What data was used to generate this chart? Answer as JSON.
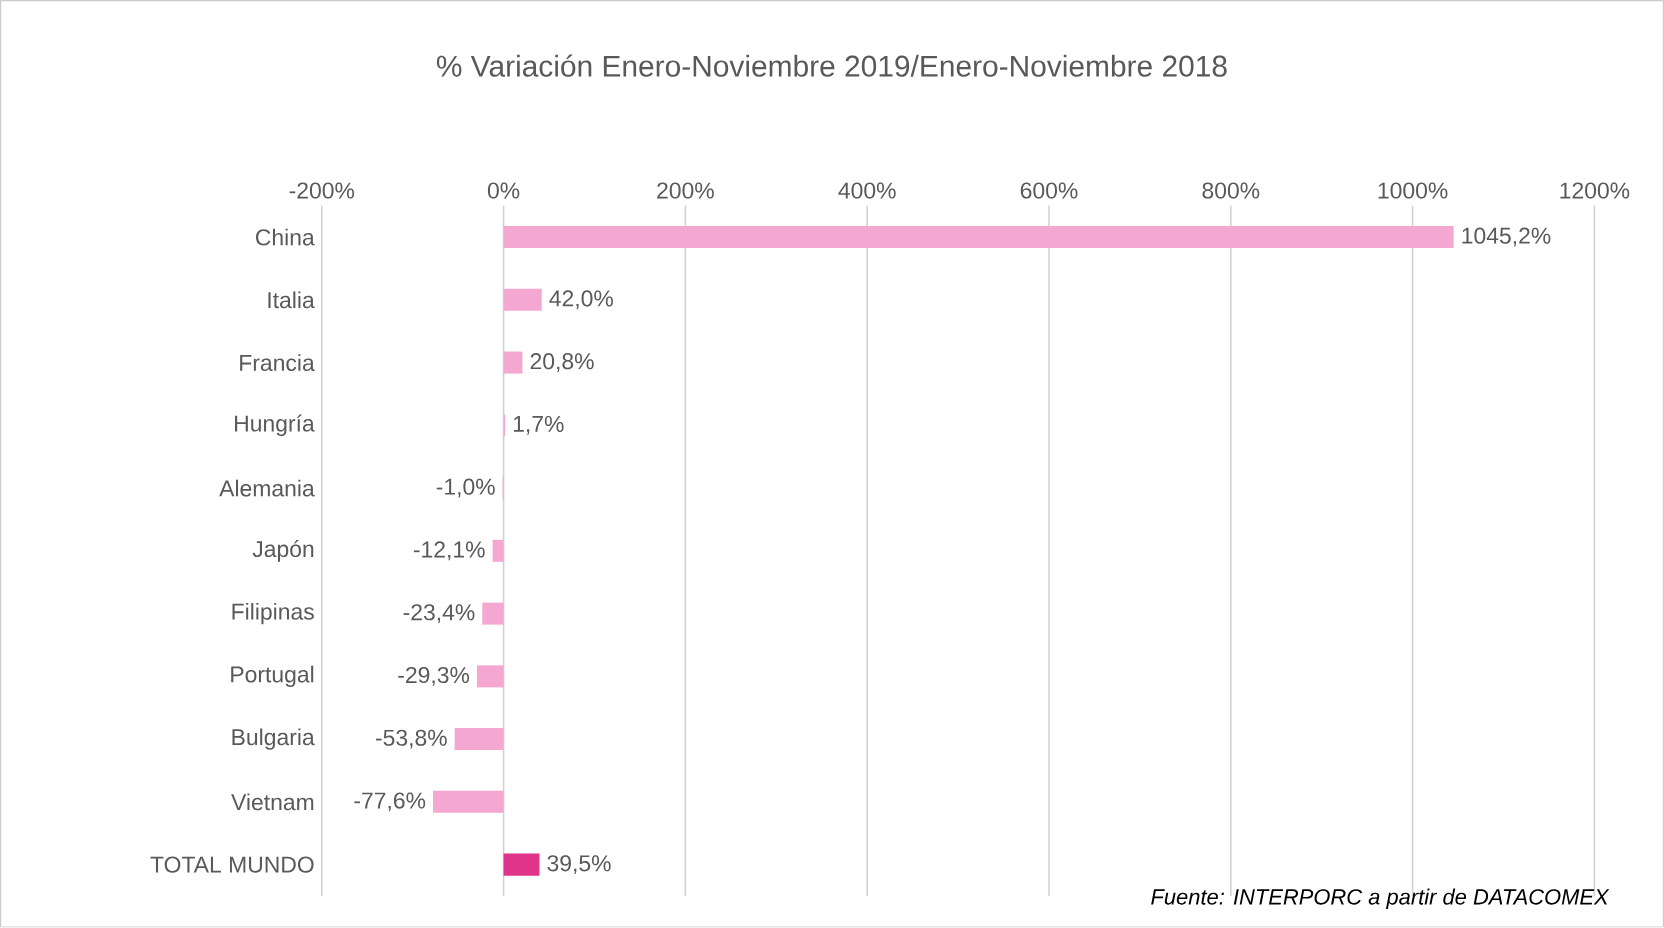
{
  "chart_data": {
    "type": "bar",
    "orientation": "horizontal",
    "title": "% Variación Enero-Noviembre 2019/Enero-Noviembre 2018",
    "categories": [
      "China",
      "Italia",
      "Francia",
      "Hungría",
      "Alemania",
      "Japón",
      "Filipinas",
      "Portugal",
      "Bulgaria",
      "Vietnam",
      "TOTAL MUNDO"
    ],
    "values": [
      1045.2,
      42.0,
      20.8,
      1.7,
      -1.0,
      -12.1,
      -23.4,
      -29.3,
      -53.8,
      -77.6,
      39.5
    ],
    "value_labels": [
      "1045,2%",
      "42,0%",
      "20,8%",
      "1,7%",
      "-1,0%",
      "-12,1%",
      "-23,4%",
      "-29,3%",
      "-53,8%",
      "-77,6%",
      "39,5%"
    ],
    "colors": [
      "#f4a7d1",
      "#f4a7d1",
      "#f4a7d1",
      "#f4a7d1",
      "#f4a7d1",
      "#f4a7d1",
      "#f4a7d1",
      "#f4a7d1",
      "#f4a7d1",
      "#f4a7d1",
      "#e0338a"
    ],
    "xlim": [
      -200,
      1200
    ],
    "xticks": [
      {
        "value": -200,
        "label": "-200%"
      },
      {
        "value": 0,
        "label": "0%"
      },
      {
        "value": 200,
        "label": "200%"
      },
      {
        "value": 400,
        "label": "400%"
      },
      {
        "value": 600,
        "label": "600%"
      },
      {
        "value": 800,
        "label": "800%"
      },
      {
        "value": 1000,
        "label": "1000%"
      },
      {
        "value": 1200,
        "label": "1200%"
      }
    ],
    "grid": "x",
    "annotations": [
      "*Fuente: INTERPORC  a partir de DATACOMEX*"
    ]
  }
}
